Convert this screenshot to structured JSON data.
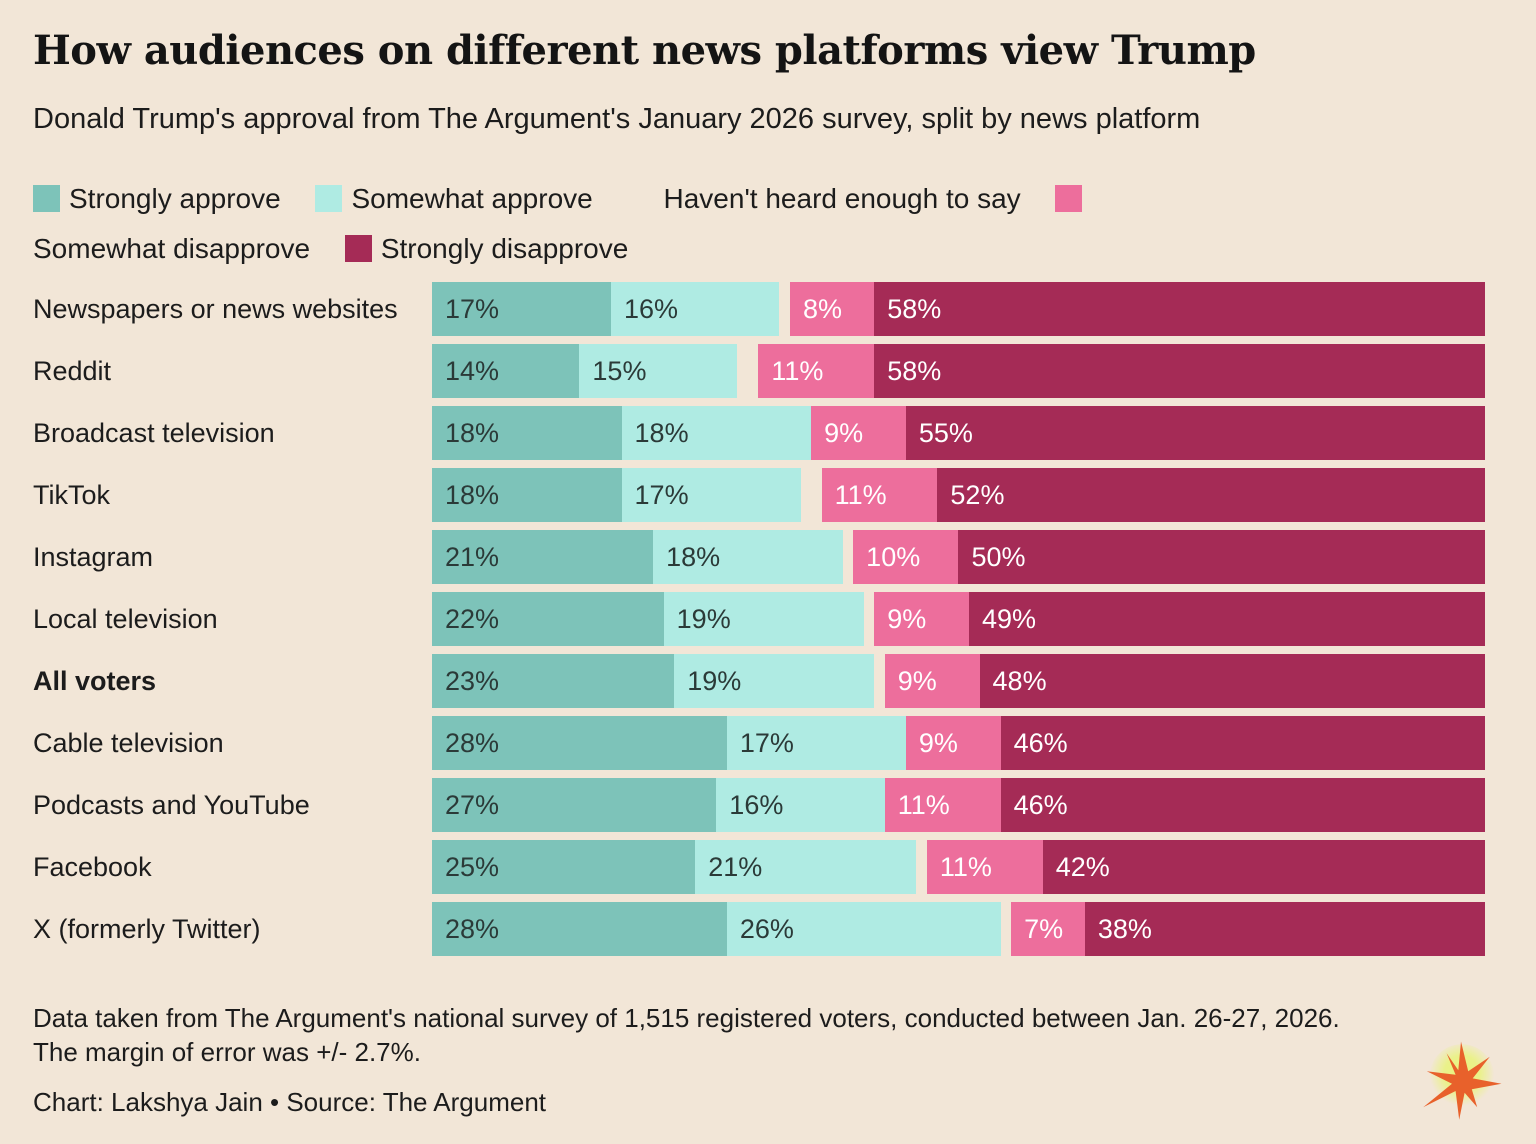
{
  "header": {
    "title": "How audiences on different news platforms view Trump",
    "subtitle": "Donald Trump's approval from The Argument's January 2026 survey, split by news platform"
  },
  "colors": {
    "background": "#F2E6D7",
    "strongly_approve": "#7DC3B9",
    "somewhat_approve": "#AFEBE3",
    "somewhat_disapprove": "#ED6E9C",
    "strongly_disapprove": "#A52B56",
    "dark_bar_label": "#2B3A38",
    "light_bar_label": "#FFFFFF",
    "logo_star": "#E8612B",
    "logo_glow": "#E9F37D"
  },
  "legend": {
    "items": [
      {
        "label": "Strongly approve",
        "color": "#7DC3B9"
      },
      {
        "label": "Somewhat approve",
        "color": "#AFEBE3"
      },
      {
        "label": "Haven't heard enough to say",
        "color": "#F2E6D7"
      },
      {
        "label": "Somewhat disapprove",
        "color": "#ED6E9C"
      },
      {
        "label": "Strongly disapprove",
        "color": "#A52B56"
      }
    ]
  },
  "chart_data": {
    "type": "bar",
    "orientation": "horizontal",
    "stacked": true,
    "unit": "%",
    "xlim": [
      0,
      100
    ],
    "series": [
      {
        "name": "Strongly approve",
        "color": "#7DC3B9",
        "label_style": "dark"
      },
      {
        "name": "Somewhat approve",
        "color": "#AFEBE3",
        "label_style": "dark"
      },
      {
        "name": "Somewhat disapprove",
        "color": "#ED6E9C",
        "label_style": "light"
      },
      {
        "name": "Strongly disapprove",
        "color": "#A52B56",
        "label_style": "light"
      }
    ],
    "implicit_middle_series": {
      "name": "Haven't heard enough to say",
      "value_rule": "100 minus the sum of the four listed values",
      "color": "background",
      "labeled_in_bar": false
    },
    "rows": [
      {
        "category": "Newspapers or news websites",
        "values": [
          17,
          16,
          8,
          58
        ]
      },
      {
        "category": "Reddit",
        "values": [
          14,
          15,
          11,
          58
        ]
      },
      {
        "category": "Broadcast television",
        "values": [
          18,
          18,
          9,
          55
        ]
      },
      {
        "category": "TikTok",
        "values": [
          18,
          17,
          11,
          52
        ]
      },
      {
        "category": "Instagram",
        "values": [
          21,
          18,
          10,
          50
        ]
      },
      {
        "category": "Local television",
        "values": [
          22,
          19,
          9,
          49
        ]
      },
      {
        "category": "All voters",
        "values": [
          23,
          19,
          9,
          48
        ],
        "bold": true
      },
      {
        "category": "Cable television",
        "values": [
          28,
          17,
          9,
          46
        ]
      },
      {
        "category": "Podcasts and YouTube",
        "values": [
          27,
          16,
          11,
          46
        ]
      },
      {
        "category": "Facebook",
        "values": [
          25,
          21,
          11,
          42
        ]
      },
      {
        "category": "X (formerly Twitter)",
        "values": [
          28,
          26,
          7,
          38
        ]
      }
    ]
  },
  "footer": {
    "note": "Data taken from The Argument's national survey of 1,515 registered voters, conducted between Jan. 26-27, 2026. The margin of error was +/- 2.7%.",
    "credit": "Chart: Lakshya Jain • Source: The Argument"
  }
}
